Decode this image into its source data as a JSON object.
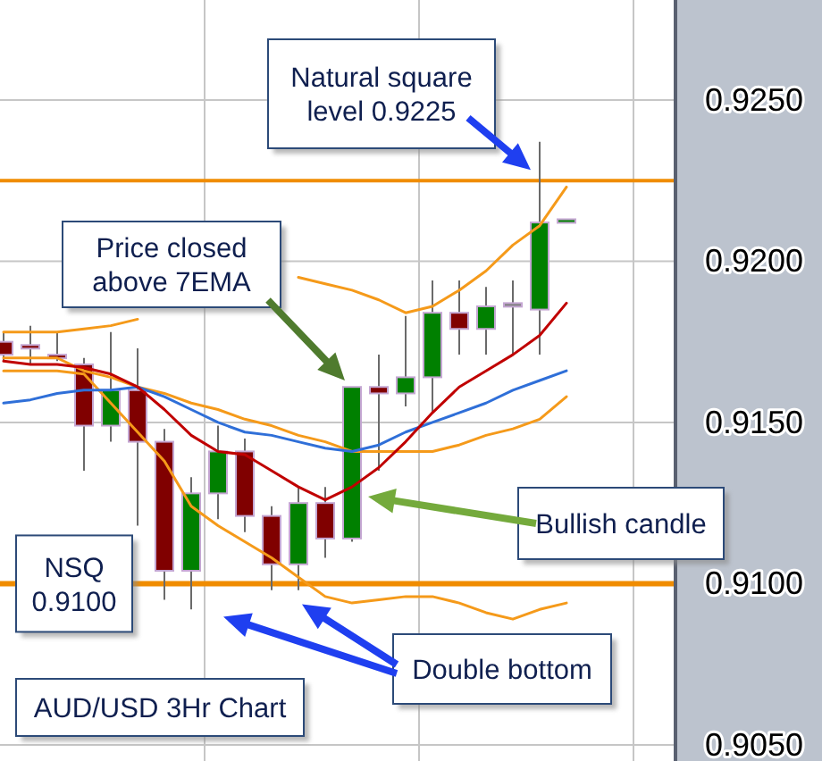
{
  "chart_data": {
    "type": "candlestick",
    "categories": [
      null,
      null,
      null,
      null,
      null,
      null,
      null,
      null,
      null,
      null,
      null,
      null,
      null,
      null,
      null,
      null,
      null,
      null,
      null,
      null,
      null,
      null
    ],
    "ohlc": [
      [
        0.9175,
        0.9178,
        0.9169,
        0.9171
      ],
      [
        0.9174,
        0.918,
        0.9168,
        0.9173
      ],
      [
        0.9171,
        0.9178,
        0.9169,
        0.917
      ],
      [
        0.9168,
        0.917,
        0.9135,
        0.9149
      ],
      [
        0.9149,
        0.9178,
        0.9144,
        0.916
      ],
      [
        0.916,
        0.9173,
        0.9118,
        0.9144
      ],
      [
        0.9144,
        0.9148,
        0.9095,
        0.9104
      ],
      [
        0.9104,
        0.9133,
        0.9092,
        0.9128
      ],
      [
        0.9128,
        0.9149,
        0.912,
        0.9141
      ],
      [
        0.9141,
        0.9145,
        0.9116,
        0.9121
      ],
      [
        0.9121,
        0.9124,
        0.9098,
        0.9106
      ],
      [
        0.9106,
        0.913,
        0.9098,
        0.9125
      ],
      [
        0.9125,
        0.913,
        0.9108,
        0.9114
      ],
      [
        0.9114,
        0.9161,
        0.9113,
        0.9161
      ],
      [
        0.9161,
        0.9171,
        0.9135,
        0.9159
      ],
      [
        0.9159,
        0.9183,
        0.9155,
        0.9164
      ],
      [
        0.9164,
        0.9194,
        0.9153,
        0.9184
      ],
      [
        0.9184,
        0.9194,
        0.9171,
        0.9179
      ],
      [
        0.9179,
        0.9192,
        0.9171,
        0.9186
      ],
      [
        0.9187,
        0.9194,
        0.9171,
        0.9186
      ],
      [
        0.9185,
        0.9237,
        0.9171,
        0.9212
      ],
      [
        0.9212,
        0.9213,
        0.9212,
        0.9213
      ]
    ],
    "colors": [
      "#800000",
      "#800000",
      "#800000",
      "#800000",
      "#008000",
      "#800000",
      "#800000",
      "#008000",
      "#008000",
      "#800000",
      "#800000",
      "#008000",
      "#800000",
      "#008000",
      "#800000",
      "#008000",
      "#008000",
      "#800000",
      "#008000",
      "#808080",
      "#008000",
      "#008000"
    ],
    "series": [
      {
        "type": "line",
        "color": "#f59a1a",
        "values": [
          0.9166,
          0.9166,
          0.9166,
          0.9165,
          0.9156,
          0.9147,
          0.9138,
          0.9124,
          0.9118,
          0.9113,
          0.9108,
          0.9102,
          0.9096,
          0.9094,
          0.9095,
          0.9096,
          0.9096,
          0.9094,
          0.9091,
          0.9089,
          0.9092,
          0.9094
        ]
      },
      {
        "type": "line",
        "color": "#f59a1a",
        "values": [
          0.917,
          0.917,
          0.917,
          0.9166,
          0.9164,
          0.9161,
          0.9159,
          0.9156,
          0.9154,
          0.9151,
          0.9149,
          0.9146,
          0.9144,
          0.9141,
          0.9141,
          0.9141,
          0.9141,
          0.9143,
          0.9146,
          0.9148,
          0.9151,
          0.9158
        ]
      },
      {
        "type": "line",
        "color": "#f59a1a",
        "values": [
          0.9178,
          0.9178,
          0.9178,
          0.9179,
          0.918,
          0.9182,
          null,
          null,
          null,
          null,
          null,
          0.9195,
          0.9193,
          0.9191,
          0.9188,
          0.9184,
          0.9186,
          0.9191,
          0.9197,
          0.9205,
          0.9211,
          0.9223
        ]
      },
      {
        "type": "line",
        "color": "#2f6fd8",
        "values": [
          0.9156,
          0.9157,
          0.9159,
          0.916,
          0.916,
          0.9161,
          0.9158,
          0.9154,
          0.915,
          0.9147,
          0.9146,
          0.9144,
          0.9142,
          0.9141,
          0.9143,
          0.9147,
          0.915,
          0.9153,
          0.9156,
          0.916,
          0.9163,
          0.9166
        ]
      },
      {
        "type": "line",
        "color": "#c00000",
        "values": [
          0.9169,
          0.9168,
          0.9168,
          0.9167,
          0.9165,
          0.9161,
          0.9154,
          0.9146,
          0.9141,
          0.914,
          0.9135,
          0.913,
          0.9126,
          0.913,
          0.9136,
          0.9144,
          0.9153,
          0.9161,
          0.9166,
          0.9171,
          0.9177,
          0.9187
        ]
      }
    ],
    "ylim": [
      0.9045,
      0.9281
    ],
    "yticks": [
      {
        "value": 0.925,
        "label": "0.9250"
      },
      {
        "value": 0.92,
        "label": "0.9200"
      },
      {
        "value": 0.915,
        "label": "0.9150"
      },
      {
        "value": 0.91,
        "label": "0.9100"
      },
      {
        "value": 0.905,
        "label": "0.9050"
      }
    ],
    "grid": true,
    "ref_lines": [
      {
        "axis": "y",
        "value": 0.9225,
        "color": "#f08c00"
      },
      {
        "axis": "y",
        "value": 0.91,
        "color": "#f08c00"
      }
    ],
    "annotations": [
      {
        "text": "Natural square level 0.9225",
        "y": 0.9225
      },
      "Price closed above 7EMA",
      "Bullish candle",
      {
        "text": "NSQ 0.9100",
        "y": 0.91
      },
      {
        "text": "Double bottom",
        "y": 0.9092
      },
      "AUD/USD 3Hr Chart"
    ]
  }
}
